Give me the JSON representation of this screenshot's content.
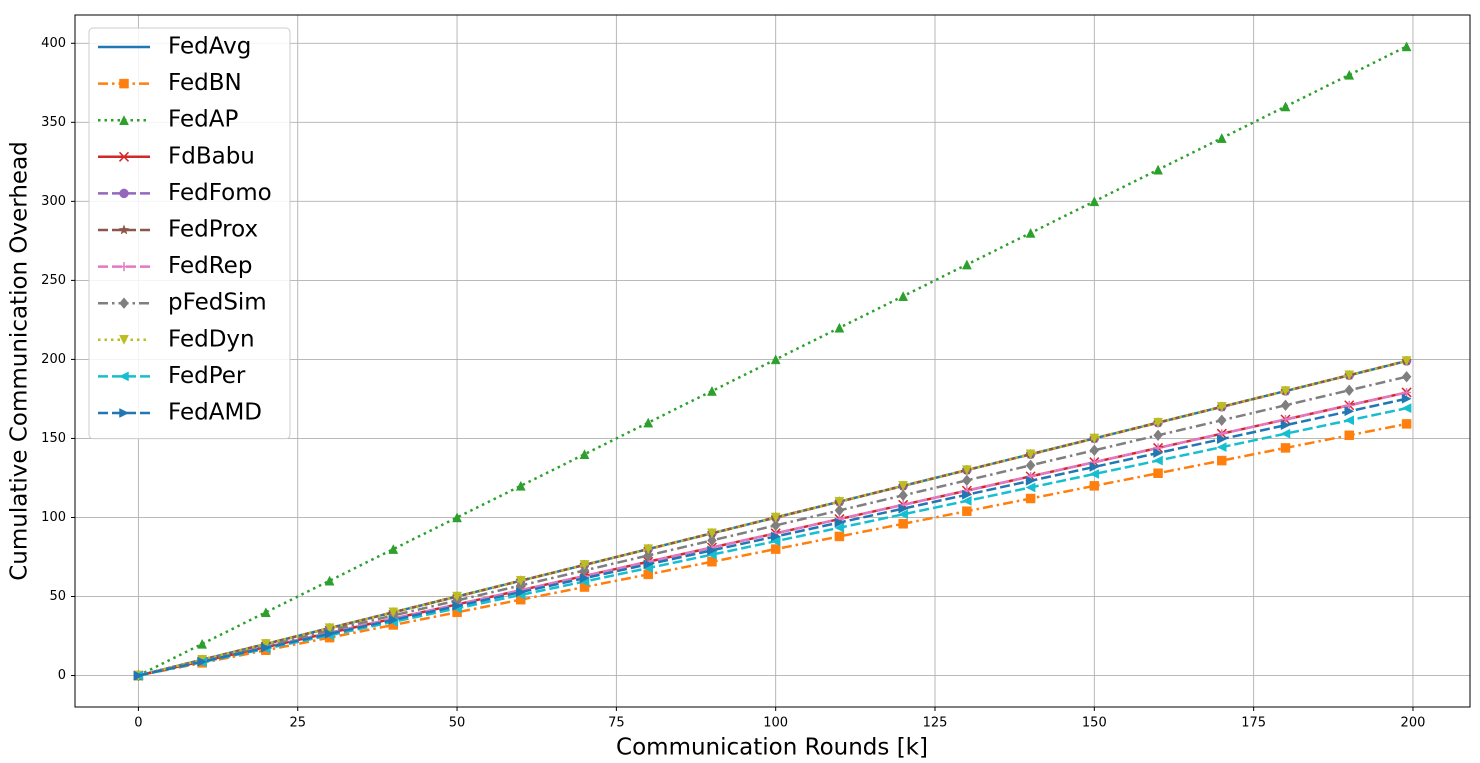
{
  "chart_data": {
    "type": "line",
    "xlabel": "Communication Rounds [k]",
    "ylabel": "Cumulative Communication Overhead",
    "x": [
      0,
      10,
      20,
      30,
      40,
      50,
      60,
      70,
      80,
      90,
      100,
      110,
      120,
      130,
      140,
      150,
      160,
      170,
      180,
      190,
      199
    ],
    "xlim": [
      -9.95,
      208.95
    ],
    "ylim": [
      -19.9,
      417.9
    ],
    "xticks": [
      0,
      25,
      50,
      75,
      100,
      125,
      150,
      175,
      200
    ],
    "yticks": [
      0,
      50,
      100,
      150,
      200,
      250,
      300,
      350,
      400
    ],
    "grid": true,
    "legend": "upper-left",
    "series": [
      {
        "name": "FedAvg",
        "color": "#1f77b4",
        "linestyle": "solid",
        "marker": "none",
        "values": [
          0,
          10,
          20,
          30,
          40,
          50,
          60,
          70,
          80,
          90,
          100,
          110,
          120,
          130,
          140,
          150,
          160,
          170,
          180,
          190,
          199
        ]
      },
      {
        "name": "FedBN",
        "color": "#ff7f0e",
        "linestyle": "dashdot",
        "marker": "square",
        "values": [
          0,
          8,
          16,
          24,
          32,
          40,
          48,
          56,
          64,
          72,
          80,
          88,
          96,
          104,
          112,
          120,
          128,
          136,
          144,
          152,
          159.2
        ]
      },
      {
        "name": "FedAP",
        "color": "#2ca02c",
        "linestyle": "dotted",
        "marker": "triangle-up",
        "values": [
          0,
          20,
          40,
          60,
          80,
          100,
          120,
          140,
          160,
          180,
          200,
          220,
          240,
          260,
          280,
          300,
          320,
          340,
          360,
          380,
          398
        ]
      },
      {
        "name": "FdBabu",
        "color": "#d62728",
        "linestyle": "solid",
        "marker": "x",
        "values": [
          0,
          9,
          18,
          27,
          36,
          45,
          54,
          63,
          72,
          81,
          90,
          99,
          108,
          117,
          126,
          135,
          144,
          153,
          162,
          171,
          179.1
        ]
      },
      {
        "name": "FedFomo",
        "color": "#9467bd",
        "linestyle": "dashed",
        "marker": "circle",
        "values": [
          0,
          10,
          20,
          30,
          40,
          50,
          60,
          70,
          80,
          90,
          100,
          110,
          120,
          130,
          140,
          150,
          160,
          170,
          180,
          190,
          199
        ]
      },
      {
        "name": "FedProx",
        "color": "#8c564b",
        "linestyle": "dashed",
        "marker": "star",
        "values": [
          0,
          10,
          20,
          30,
          40,
          50,
          60,
          70,
          80,
          90,
          100,
          110,
          120,
          130,
          140,
          150,
          160,
          170,
          180,
          190,
          199
        ]
      },
      {
        "name": "FedRep",
        "color": "#e377c2",
        "linestyle": "dashed",
        "marker": "plus",
        "values": [
          0,
          9,
          18,
          27,
          36,
          45,
          54,
          63,
          72,
          81,
          90,
          99,
          108,
          117,
          126,
          135,
          144,
          153,
          162,
          171,
          179.1
        ]
      },
      {
        "name": "pFedSim",
        "color": "#7f7f7f",
        "linestyle": "dashdot",
        "marker": "diamond",
        "values": [
          0,
          9.5,
          19,
          28.5,
          38,
          47.5,
          57,
          66.5,
          76,
          85.5,
          95,
          104.5,
          114,
          123.5,
          133,
          142.5,
          152,
          161.5,
          171,
          180.5,
          189.05
        ]
      },
      {
        "name": "FedDyn",
        "color": "#bcbd22",
        "linestyle": "dotted",
        "marker": "triangle-down",
        "values": [
          0,
          10,
          20,
          30,
          40,
          50,
          60,
          70,
          80,
          90,
          100,
          110,
          120,
          130,
          140,
          150,
          160,
          170,
          180,
          190,
          199
        ]
      },
      {
        "name": "FedPer",
        "color": "#17becf",
        "linestyle": "dashed",
        "marker": "triangle-left",
        "values": [
          0,
          8.5,
          17,
          25.5,
          34,
          42.5,
          51,
          59.5,
          68,
          76.5,
          85,
          93.5,
          102,
          110.5,
          119,
          127.5,
          136,
          144.5,
          153,
          161.5,
          169.15
        ]
      },
      {
        "name": "FedAMD",
        "color": "#1f77b4",
        "linestyle": "dashed",
        "marker": "triangle-right",
        "values": [
          0,
          8.8,
          17.6,
          26.4,
          35.2,
          44,
          52.8,
          61.6,
          70.4,
          79.2,
          88,
          96.8,
          105.6,
          114.4,
          123.2,
          132,
          140.8,
          149.6,
          158.4,
          167.2,
          175.12
        ]
      }
    ]
  }
}
